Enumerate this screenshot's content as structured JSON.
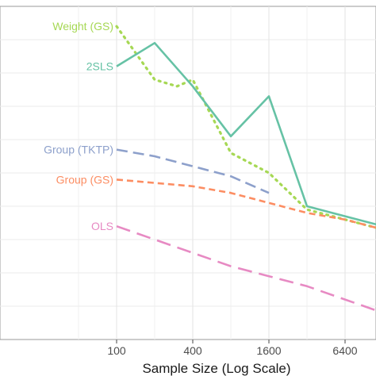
{
  "chart_data": {
    "type": "line",
    "xlabel": "Sample Size (Log Scale)",
    "ylabel": "",
    "xscale": "log2",
    "xlim": [
      100,
      12800
    ],
    "ylim": [
      0,
      10
    ],
    "grid": true,
    "legend": "direct labels at left end of each line",
    "xticks": [
      {
        "value": 100,
        "label": "100"
      },
      {
        "value": 400,
        "label": "400"
      },
      {
        "value": 1600,
        "label": "1600"
      },
      {
        "value": 6400,
        "label": "6400"
      }
    ],
    "series": [
      {
        "name": "Weight (GS)",
        "color": "#a6d854",
        "dash": "dotted",
        "x": [
          100,
          200,
          300,
          400,
          800,
          1600,
          3200,
          6400,
          12800
        ],
        "y": [
          9.4,
          7.8,
          7.6,
          7.8,
          5.6,
          5.0,
          3.9,
          3.6,
          3.3
        ]
      },
      {
        "name": "2SLS",
        "color": "#66c2a5",
        "dash": "solid",
        "x": [
          100,
          200,
          400,
          800,
          1600,
          3200,
          6400,
          12800
        ],
        "y": [
          8.2,
          8.9,
          7.6,
          6.1,
          7.3,
          4.0,
          3.7,
          3.4
        ]
      },
      {
        "name": "Group (TKTP)",
        "color": "#8da0cb",
        "dash": "dashed",
        "x": [
          100,
          200,
          400,
          800,
          1600
        ],
        "y": [
          5.7,
          5.5,
          5.2,
          4.9,
          4.4
        ]
      },
      {
        "name": "Group (GS)",
        "color": "#fc8d62",
        "dash": "short-dashed",
        "x": [
          100,
          200,
          400,
          800,
          1600,
          3200,
          6400,
          12800
        ],
        "y": [
          4.8,
          4.7,
          4.6,
          4.4,
          4.1,
          3.8,
          3.6,
          3.3
        ]
      },
      {
        "name": "OLS",
        "color": "#e78ac3",
        "dash": "long-dashed",
        "x": [
          100,
          200,
          400,
          800,
          1600,
          3200,
          6400,
          12800
        ],
        "y": [
          3.4,
          3.0,
          2.6,
          2.2,
          1.9,
          1.6,
          1.2,
          0.8
        ]
      }
    ]
  }
}
